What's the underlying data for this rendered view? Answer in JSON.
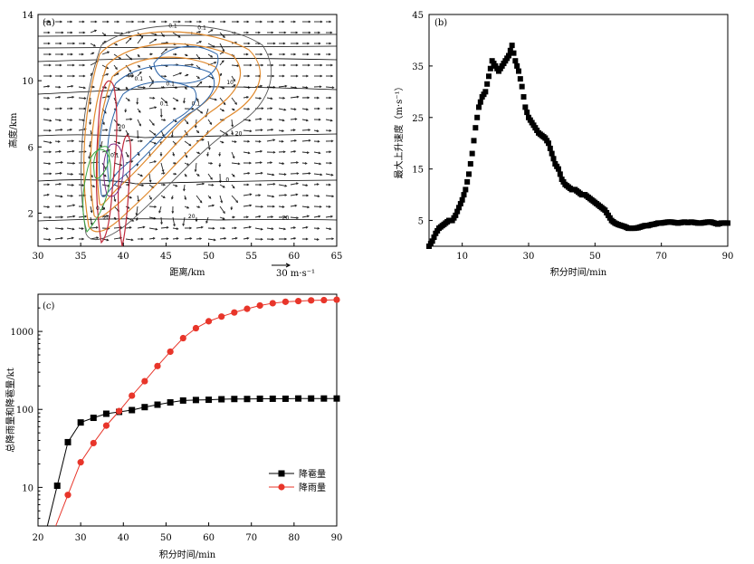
{
  "chart_data": [
    {
      "panel": "(a)",
      "type": "contour",
      "xlabel": "距离/km",
      "ylabel": "高度/km",
      "xlim": [
        30,
        65
      ],
      "ylim": [
        0,
        14
      ],
      "xticks": [
        30,
        35,
        40,
        45,
        50,
        55,
        60,
        65
      ],
      "yticks": [
        2,
        6,
        10,
        14
      ],
      "vector_ref": "30 m·s⁻¹",
      "contour_labels": [
        {
          "text": "0.1",
          "x": 45.8,
          "y": 13.2
        },
        {
          "text": "0.1",
          "x": 49.2,
          "y": 13.1
        },
        {
          "text": "40",
          "x": 40.8,
          "y": 10.2
        },
        {
          "text": "0.1",
          "x": 41.8,
          "y": 10.0
        },
        {
          "text": "0.1",
          "x": 45.5,
          "y": 9.7
        },
        {
          "text": "10",
          "x": 52.5,
          "y": 9.8
        },
        {
          "text": "0.1",
          "x": 48.5,
          "y": 8.5
        },
        {
          "text": "0.1",
          "x": 44.8,
          "y": 8.5
        },
        {
          "text": "20",
          "x": 39.8,
          "y": 7.1
        },
        {
          "text": "20",
          "x": 53.5,
          "y": 6.7
        },
        {
          "text": "0.1",
          "x": 39.0,
          "y": 5.4
        },
        {
          "text": "0",
          "x": 52.2,
          "y": 3.9
        },
        {
          "text": "0.1",
          "x": 37.3,
          "y": 2.2
        },
        {
          "text": "20",
          "x": 38.0,
          "y": 1.6
        },
        {
          "text": "20",
          "x": 48.0,
          "y": 1.7
        },
        {
          "text": "20",
          "x": 59.0,
          "y": 1.6
        }
      ]
    },
    {
      "panel": "(b)",
      "type": "scatter",
      "xlabel": "积分时间/min",
      "ylabel": "最大上升速度（m·s⁻¹）",
      "xlim": [
        0,
        90
      ],
      "ylim": [
        0,
        45
      ],
      "xticks": [
        10,
        30,
        50,
        70,
        90
      ],
      "yticks": [
        5,
        15,
        25,
        35,
        45
      ],
      "series": [
        {
          "x": [
            0,
            1,
            2,
            3,
            4,
            5,
            6,
            7,
            8,
            9,
            10,
            11,
            12,
            13,
            14,
            15,
            16,
            17,
            18,
            19,
            20,
            21,
            22,
            23,
            24,
            25,
            26,
            27,
            28,
            29,
            30,
            31,
            32,
            33,
            34,
            35,
            36,
            37,
            38,
            39,
            40,
            41,
            42,
            43,
            44,
            45,
            46,
            47,
            48,
            49,
            50,
            51,
            52,
            53,
            54,
            55,
            56,
            57,
            58,
            59,
            60,
            61,
            62,
            63,
            64,
            65,
            66,
            67,
            68,
            69,
            70,
            71,
            72,
            73,
            74,
            75,
            76,
            77,
            78,
            79,
            80,
            81,
            82,
            83,
            84,
            85,
            86,
            87,
            88,
            89,
            90
          ],
          "y": [
            0,
            1,
            2.5,
            3.5,
            4,
            4.5,
            5,
            5,
            6,
            7.5,
            9,
            11,
            14,
            18,
            23,
            27,
            29,
            30,
            33,
            36,
            35,
            34,
            35,
            36,
            37,
            39,
            36,
            34,
            31,
            27,
            25,
            24,
            23,
            22,
            21.5,
            21,
            20,
            18,
            16,
            15,
            13,
            12,
            11.5,
            11,
            11,
            10.5,
            10,
            10,
            9.5,
            9,
            8.5,
            8,
            7.5,
            7,
            6,
            5,
            4.5,
            4.2,
            4,
            3.8,
            3.5,
            3.5,
            3.5,
            3.6,
            3.8,
            4,
            4,
            4.2,
            4.3,
            4.5,
            4.5,
            4.6,
            4.7,
            4.7,
            4.6,
            4.5,
            4.6,
            4.7,
            4.6,
            4.7,
            4.6,
            4.5,
            4.5,
            4.6,
            4.7,
            4.7,
            4.5,
            4.3,
            4.5,
            4.5,
            4.5
          ]
        }
      ]
    },
    {
      "panel": "(c)",
      "type": "line",
      "scale": "log",
      "xlabel": "积分时间/min",
      "ylabel": "总降雨量和降雹量/kt",
      "xlim": [
        20,
        90
      ],
      "ylim": [
        3.2,
        3000
      ],
      "xticks": [
        20,
        30,
        40,
        50,
        60,
        70,
        80,
        90
      ],
      "yticks": [
        10,
        100,
        1000
      ],
      "legend": "bottom-right",
      "series": [
        {
          "name": "降雹量",
          "color": "#000000",
          "marker": "square",
          "x": [
            24.5,
            27,
            30,
            33,
            36,
            39,
            42,
            45,
            48,
            51,
            54,
            57,
            60,
            63,
            66,
            69,
            72,
            75,
            78,
            81,
            84,
            87,
            90
          ],
          "y": [
            10.5,
            38,
            68,
            78,
            88,
            93,
            98,
            107,
            115,
            123,
            130,
            132,
            133,
            135,
            136,
            136,
            137,
            137,
            137,
            138,
            138,
            138,
            138
          ]
        },
        {
          "name": "降雨量",
          "color": "#e8352a",
          "marker": "circle",
          "x": [
            27,
            30,
            33,
            36,
            39,
            42,
            45,
            48,
            51,
            54,
            57,
            60,
            63,
            66,
            69,
            72,
            75,
            78,
            81,
            84,
            87,
            90
          ],
          "y": [
            8,
            21,
            37,
            62,
            95,
            150,
            230,
            360,
            550,
            820,
            1100,
            1350,
            1550,
            1750,
            1950,
            2150,
            2300,
            2400,
            2450,
            2500,
            2520,
            2550
          ]
        }
      ]
    }
  ]
}
